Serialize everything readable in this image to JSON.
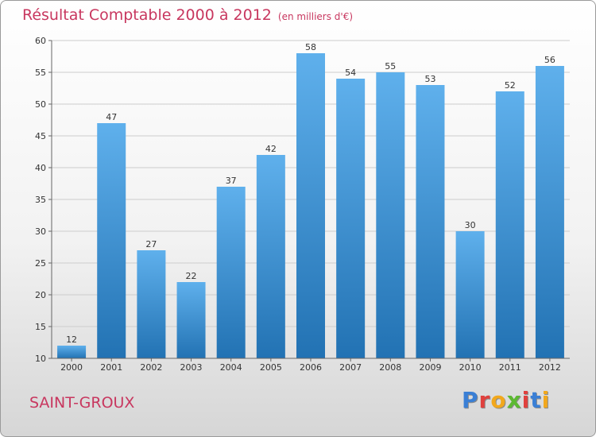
{
  "title": "Résultat Comptable 2000 à 2012",
  "subtitle": "(en milliers d'€)",
  "commune": "SAINT-GROUX",
  "logo": {
    "text": "Proxiti",
    "letter_colors": [
      "#3a7fd5",
      "#e0403d",
      "#f2a81d",
      "#5cb932",
      "#e0403d",
      "#3a7fd5",
      "#f2a81d"
    ]
  },
  "colors": {
    "bar_top": "#5fb0ec",
    "bar_bottom": "#2272b3",
    "grid": "#cccccc",
    "title": "#c8375f"
  },
  "chart_data": {
    "type": "bar",
    "title": "Résultat Comptable 2000 à 2012",
    "xlabel": "",
    "ylabel": "",
    "categories": [
      "2000",
      "2001",
      "2002",
      "2003",
      "2004",
      "2005",
      "2006",
      "2007",
      "2008",
      "2009",
      "2010",
      "2011",
      "2012"
    ],
    "values": [
      12,
      47,
      27,
      22,
      37,
      42,
      58,
      54,
      55,
      53,
      30,
      52,
      56
    ],
    "ylim": [
      10,
      60
    ],
    "yticks": [
      10,
      15,
      20,
      25,
      30,
      35,
      40,
      45,
      50,
      55,
      60
    ],
    "grid": true
  }
}
